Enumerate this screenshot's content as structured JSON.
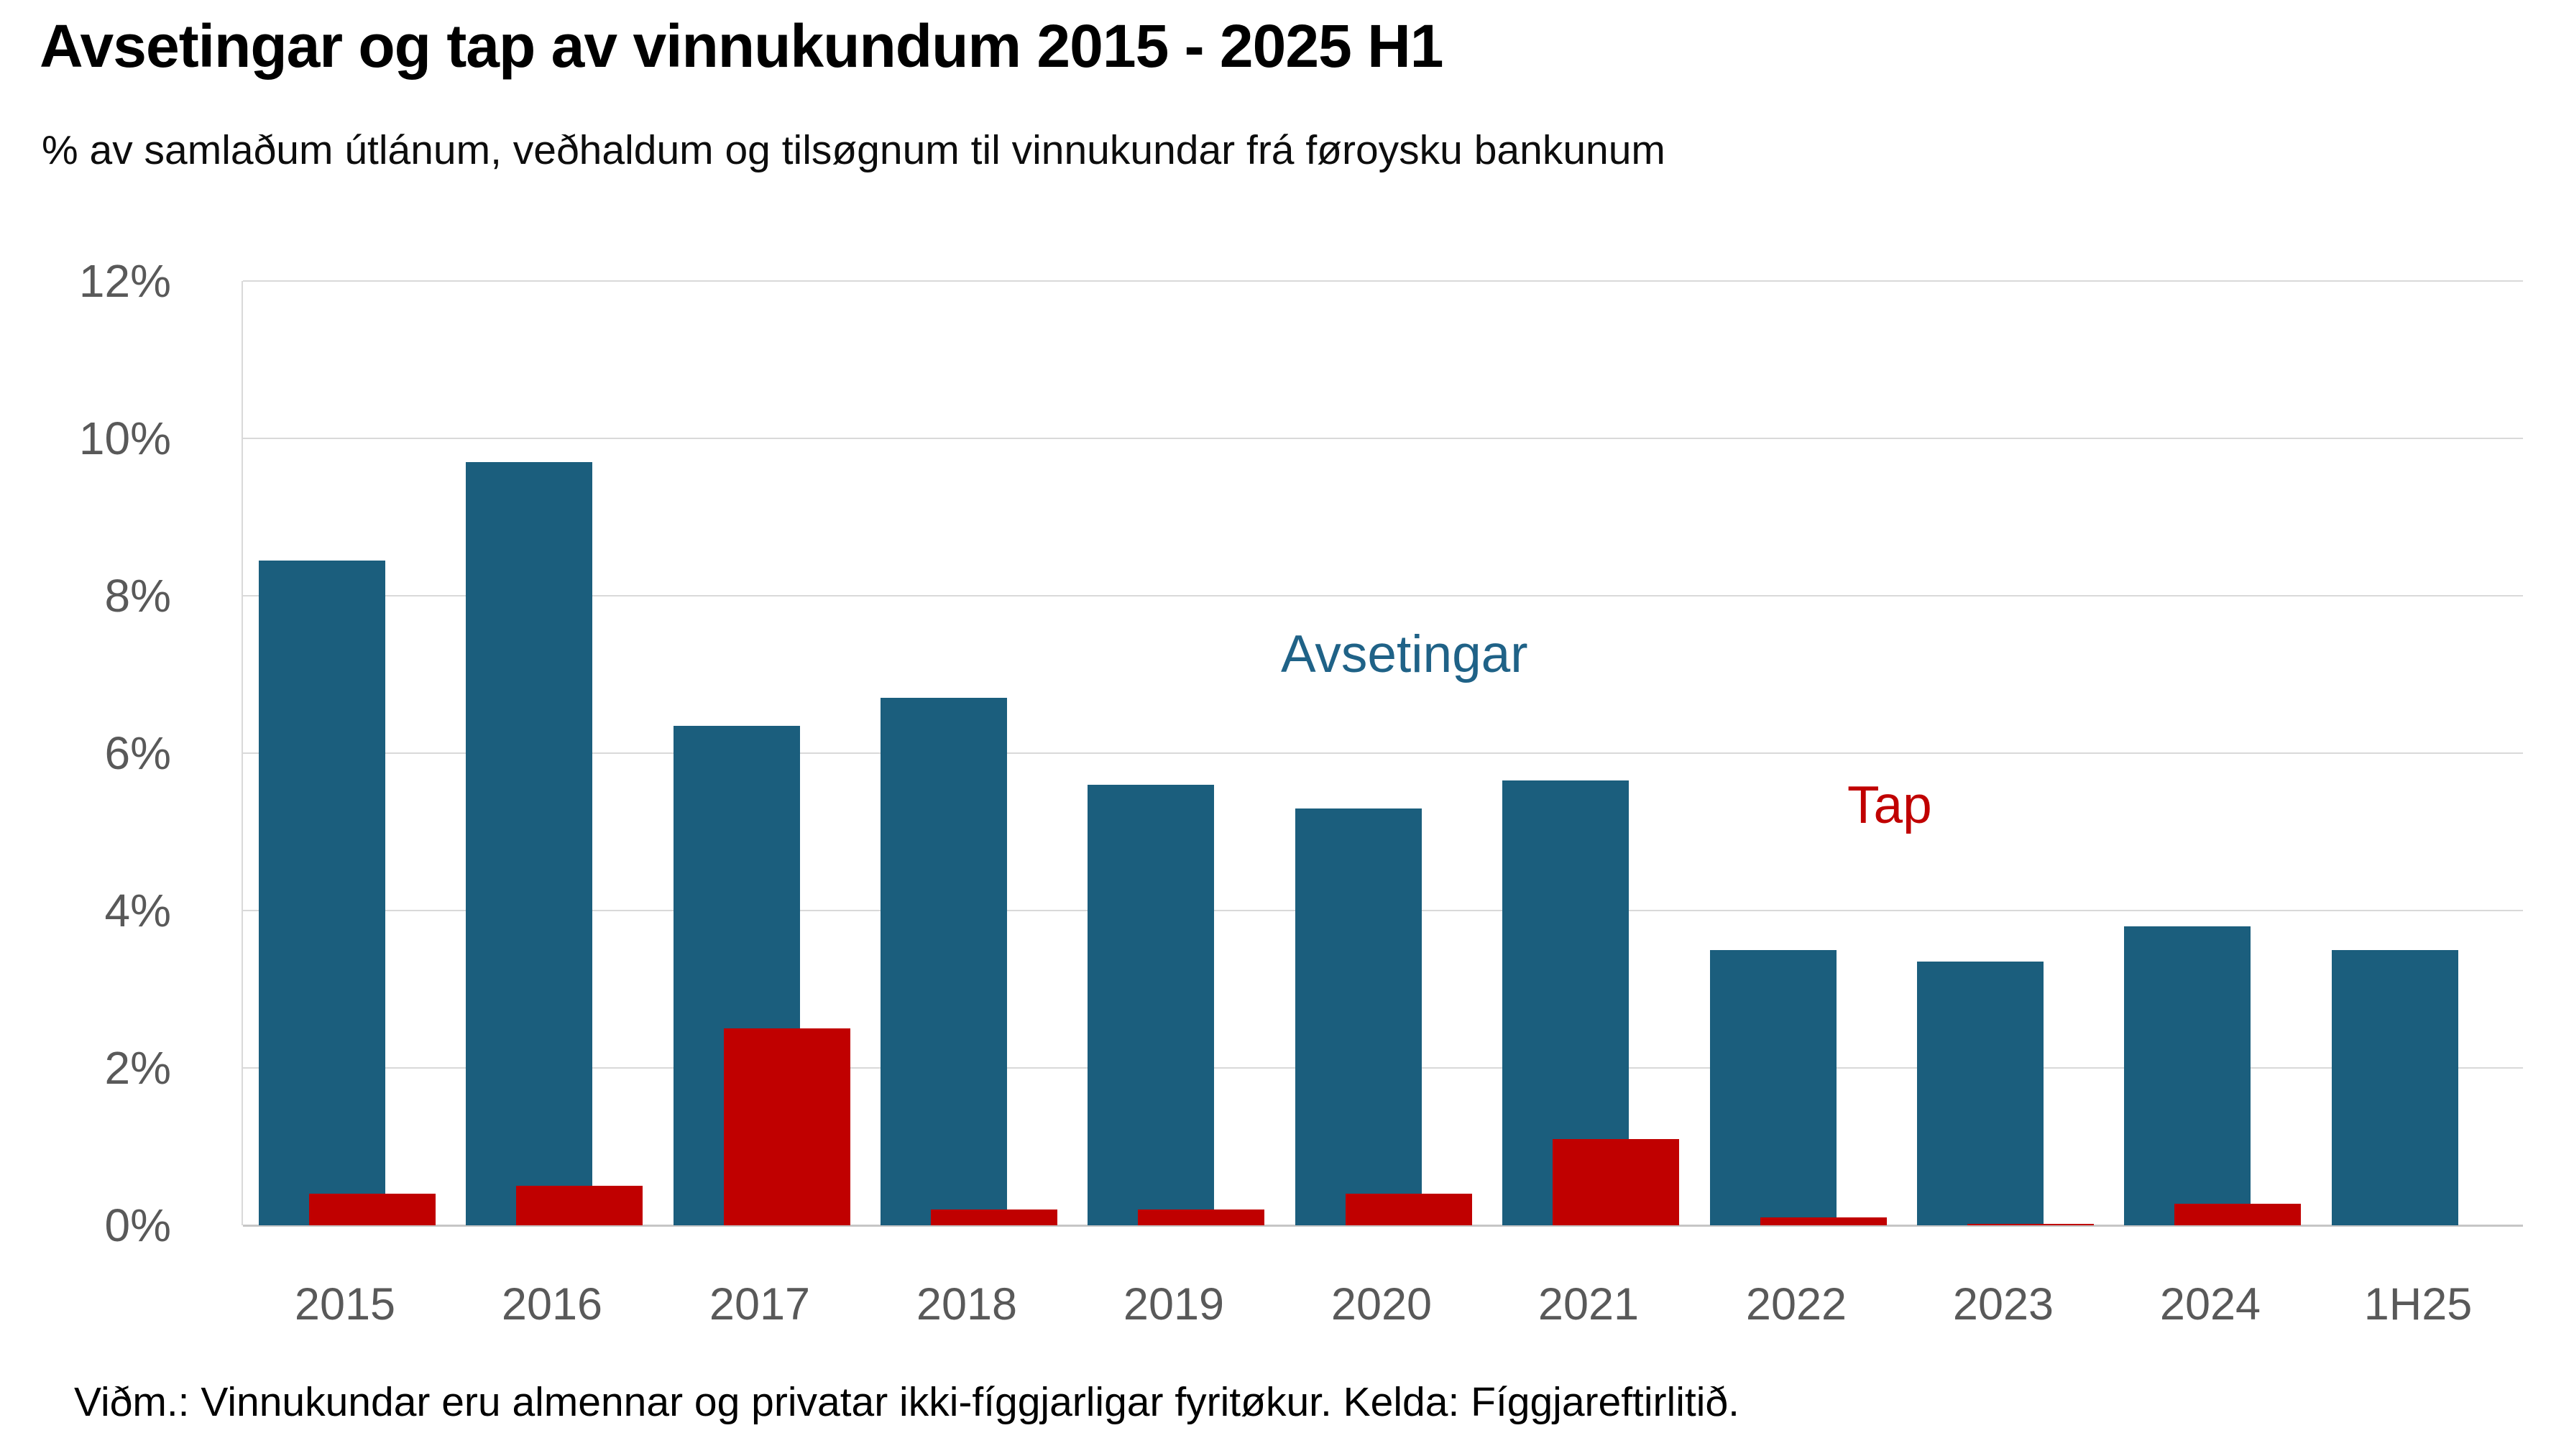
{
  "header": {
    "title": "Avsetingar og tap av vinnukundum 2015 - 2025 H1",
    "subtitle": "% av samlaðum útlánum, veðhaldum og tilsøgnum til vinnukundar frá føroysku bankunum"
  },
  "footnote": "Viðm.: Vinnukundar eru almennar og privatar ikki-fíggjarligar fyritøkur. Kelda: Fíggjareftirlitið.",
  "colors": {
    "avsetingar_bar": "#1B5E7D",
    "tap_bar": "#C00000",
    "avsetingar_label": "#1F6287",
    "tap_label": "#C00000",
    "gridline": "#D9D9D9",
    "axis_line": "#C6C6C6",
    "tick_label": "#595959",
    "title_text": "#000000"
  },
  "chart_data": {
    "type": "bar",
    "title": "Avsetingar og tap av vinnukundum 2015 - 2025 H1",
    "subtitle": "% av samlaðum útlánum, veðhaldum og tilsøgnum til vinnukundar frá føroysku bankunum",
    "categories": [
      "2015",
      "2016",
      "2017",
      "2018",
      "2019",
      "2020",
      "2021",
      "2022",
      "2023",
      "2024",
      "1H25"
    ],
    "series": [
      {
        "name": "Avsetingar",
        "color": "#1B5E7D",
        "values": [
          8.45,
          9.7,
          6.35,
          6.7,
          5.6,
          5.3,
          5.65,
          3.5,
          3.35,
          3.8,
          3.5
        ]
      },
      {
        "name": "Tap",
        "color": "#C00000",
        "values": [
          0.4,
          0.5,
          2.5,
          0.2,
          0.2,
          0.4,
          1.1,
          0.1,
          0.02,
          0.27,
          0
        ]
      }
    ],
    "xlabel": "",
    "ylabel": "% av samlaðum útlánum, veðhaldum og tilsøgnum til vinnukundar",
    "ylim": [
      0,
      12
    ],
    "y_ticks": [
      "12%",
      "10%",
      "8%",
      "6%",
      "4%",
      "2%",
      "0%"
    ],
    "grid": true,
    "legend": "inline-series-text-labels"
  }
}
